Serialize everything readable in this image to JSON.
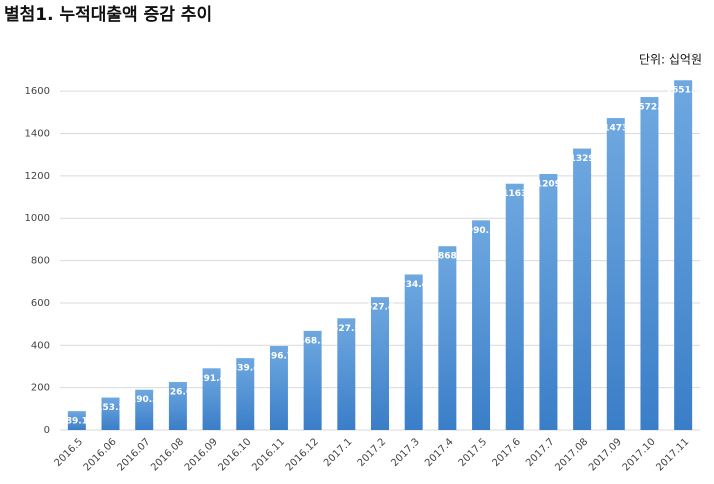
{
  "chart_data": {
    "type": "bar",
    "title": "별첨1. 누적대출액 증감 추이",
    "unit": "단위: 십억원",
    "categories": [
      "2016.5",
      "2016.06",
      "2016.07",
      "2016.08",
      "2016.09",
      "2016.10",
      "2016.11",
      "2016.12",
      "2017.1",
      "2017.2",
      "2017.3",
      "2017.4",
      "2017.5",
      "2017.6",
      "2017.7",
      "2017.08",
      "2017.09",
      "2017.10",
      "2017.11"
    ],
    "values": [
      89.1,
      153.2,
      190.3,
      226.6,
      291.4,
      339.4,
      396.7,
      468.2,
      527.5,
      627.4,
      734.4,
      868.0,
      990.1,
      1163,
      1209,
      1329,
      1473,
      1572.2,
      1651.6
    ],
    "color": "#4a8fd4",
    "ylim": [
      0,
      1700
    ],
    "yticks": [
      0,
      200,
      400,
      600,
      800,
      1000,
      1200,
      1400,
      1600
    ],
    "grid": true
  }
}
